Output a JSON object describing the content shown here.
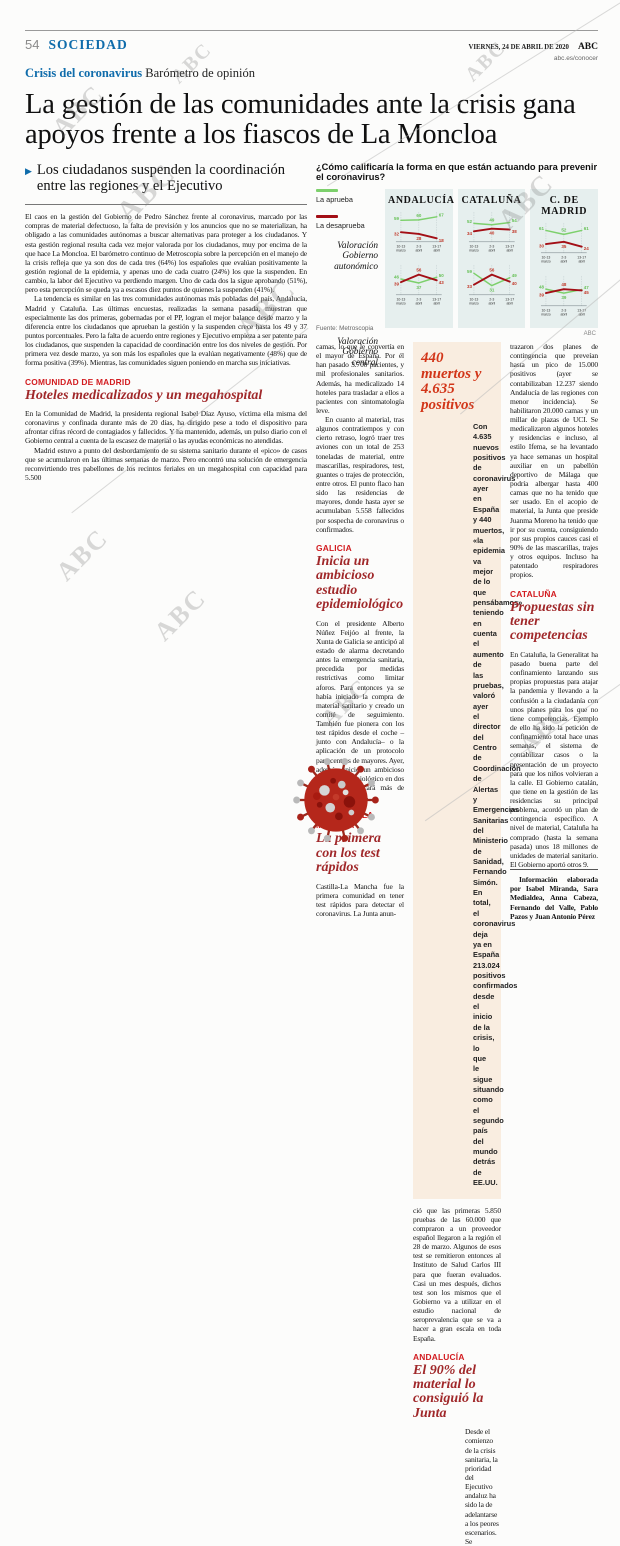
{
  "page": {
    "page_number": "54",
    "section": "SOCIEDAD",
    "kicker_bold": "Crisis del coronavirus",
    "kicker_rest": "Barómetro de opinión",
    "date_line": "VIERNES, 24 DE ABRIL DE 2020",
    "brand": "ABC",
    "site": "abc.es/conocer",
    "headline": "La gestión de las comunidades ante la crisis gana apoyos frente a los fiascos de La Moncloa",
    "watermark": "ABC"
  },
  "standfirst": "Los ciudadanos suspenden la coordinación entre las regiones y el Ejecutivo",
  "chart_data": {
    "type": "line",
    "title": "¿Cómo calificaría la forma en que están actuando para prevenir el coronavirus?",
    "categories": [
      "10-13 marzo",
      "2-3 abril",
      "13-17 abril"
    ],
    "ylim": [
      10,
      78
    ],
    "grid": "dotted-vertical",
    "legend_position": "left",
    "panel_bg": "#e6efee",
    "legend": [
      {
        "key": "aprueba",
        "label": "La aprueba",
        "color": "#7dd06c",
        "text_color": "#67c157"
      },
      {
        "key": "desaprueba",
        "label": "La desaprueba",
        "color": "#a30f16",
        "text_color": "#c23a2b"
      }
    ],
    "row_labels": [
      "Valoración Gobierno autonómico",
      "Valoración Gobierno central"
    ],
    "source": "Fuente: Metroscopia",
    "credit": "ABC",
    "regions": [
      {
        "name": "ANDALUCÍA",
        "rows": [
          {
            "label": "Valoración Gobierno autonómico",
            "aprueba": [
              59,
              60,
              67
            ],
            "desaprueba": [
              32,
              28,
              18
            ]
          },
          {
            "label": "Valoración Gobierno central",
            "aprueba": [
              46,
              37,
              50
            ],
            "desaprueba": [
              39,
              56,
              43
            ]
          }
        ]
      },
      {
        "name": "CATALUÑA",
        "rows": [
          {
            "label": "Valoración Gobierno autonómico",
            "aprueba": [
              52,
              49,
              54
            ],
            "desaprueba": [
              34,
              40,
              38
            ]
          },
          {
            "label": "Valoración Gobierno central",
            "aprueba": [
              59,
              31,
              49
            ],
            "desaprueba": [
              33,
              56,
              40
            ]
          }
        ]
      },
      {
        "name": "C. DE MADRID",
        "rows": [
          {
            "label": "Valoración Gobierno autonómico",
            "aprueba": [
              61,
              52,
              61
            ],
            "desaprueba": [
              30,
              35,
              24
            ]
          },
          {
            "label": "Valoración Gobierno central",
            "aprueba": [
              48,
              39,
              47
            ],
            "desaprueba": [
              39,
              48,
              45
            ]
          }
        ]
      }
    ]
  },
  "articles": {
    "columns": [
      {
        "blocks": [
          {
            "type": "p",
            "text": "El caos en la gestión del Gobierno de Pedro Sánchez frente al coronavirus, marcado por las compras de material defectuoso, la falta de previsión y los anuncios que no se materializan, ha obligado a las comunidades autónomas a buscar alternativas para proteger a los ciudadanos. Y esta gestión regional resulta cada vez mejor valorada por los ciudadanos, muy por encima de la que hace La Moncloa. El barómetro continuo de Metroscopia sobre la percepción en el manejo de la crisis refleja que ya son dos de cada tres (64%) los españoles que evalúan positivamente la gestión regional de la epidemia, y apenas uno de cada cuatro (24%) los que la suspenden. En cambio, la labor del Ejecutivo va perdiendo margen. Uno de cada dos la sigue aprobando (51%), pero esta percepción se queda ya a escasos diez puntos de quienes la suspenden (41%)."
          },
          {
            "type": "p",
            "text": "La tendencia es similar en las tres comunidades autónomas más pobladas del país, Andalucía, Madrid y Cataluña. Las últimas encuestas, realizadas la semana pasada, muestran que especialmente las dos primeras, gobernadas por el PP, logran el mejor balance desde marzo y la diferencia entre los ciudadanos que aprueban la gestión y la suspenden crece hasta los 49 y 37 puntos porcentuales. Pero la falta de acuerdo entre regiones y Ejecutivo empieza a ser patente para los ciudadanos, que suspenden la capacidad de coordinación entre los dos niveles de gestión. Por primera vez desde marzo, ya son más los españoles que la evalúan negativamente (48%) que de forma positiva (39%). Mientras, las comunidades siguen poniendo en marcha sus iniciativas."
          },
          {
            "type": "kicker",
            "text": "COMUNIDAD DE MADRID"
          },
          {
            "type": "subhead",
            "text": "Hoteles medicalizados y un megahospital"
          },
          {
            "type": "p",
            "text": "En la Comunidad de Madrid, la presidenta regional Isabel Díaz Ayuso, víctima ella misma del coronavirus y confinada durante más de 20 días, ha dirigido pese a todo el dispositivo para afrontar cifras récord de contagiados y fallecidos. Y ha mantenido, además, un pulso diario con el Gobierno central a cuenta de la escasez de material o las ayudas económicas no atendidas."
          },
          {
            "type": "p",
            "text": "Madrid estuvo a punto del desbordamiento de su sistema sanitario durante el «pico» de casos que se acumularon en las últimas semanas de marzo. Pero encontró una solución de emergencia reconvirtiendo tres pabellones de los recintos feriales en un megahospital con capacidad para 5.500"
          }
        ]
      },
      {
        "blocks": [
          {
            "type": "p",
            "text": "camas, lo que le convertía en el mayor de España. Por él han pasado 3.700 pacientes, y mil profesionales sanitarios. Además, ha medicalizado 14 hoteles para trasladar a ellos a pacientes con sintomatología leve."
          },
          {
            "type": "p",
            "text": "En cuanto al material, tras algunos contratiempos y con cierto retraso, logró traer tres aviones con un total de 253 toneladas de material, entre mascarillas, respiradores, test, guantes o trajes de protección, entre otros. El punto flaco han sido las residencias de mayores, donde hasta ayer se acumulaban 5.558 fallecidos por sospecha de coronavirus o confirmados."
          },
          {
            "type": "kicker",
            "text": "GALICIA"
          },
          {
            "type": "subhead",
            "text": "Inicia un ambicioso estudio epidemiológico"
          },
          {
            "type": "p",
            "text": "Con el presidente Alberto Núñez Feijóo al frente, la Xunta de Galicia se anticipó al estado de alarma decretando antes la emergencia sanitaria, precedida por medidas restrictivas como limitar aforos. Para entonces ya se había iniciado la compra de material sanitario y creado un comité de seguimiento. También fue pionera con los test rápidos desde el coche –junto con Andalucía– o la aplicación de un protocolo para centros de mayores. Ayer, además, inició un ambicioso estudio epidemiológico en dos fases que abarcará más de 100.000 muestras."
          },
          {
            "type": "kicker",
            "text": "CASTILLA-LA MANCHA"
          },
          {
            "type": "subhead",
            "text": "La primera con los test rápidos"
          },
          {
            "type": "p",
            "text": "Castilla-La Mancha fue la primera comunidad en tener test rápidos para detectar el coronavirus. La Junta anun-"
          }
        ]
      },
      {
        "blocks": [
          {
            "type": "box",
            "title": "440 muertos y 4.635 positivos",
            "body": "Con 4.635 nuevos positivos de coronavirus ayer en España y 440 muertos, «la epidemia va mejor de lo que pensábamos» teniendo en cuenta el aumento de las pruebas, valoró ayer el director del Centro de Coordinación de Alertas y Emergencias Sanitarias del Ministerio de Sanidad, Fernando Simón. En total, el coronavirus deja ya en España 213.024 positivos confirmados desde el inicio de la crisis, lo que le sigue situando como el segundo país del mundo detrás de EE.UU."
          },
          {
            "type": "p",
            "text": "ció que las primeras 5.850 pruebas de las 60.000 que compraron a un proveedor español llegaron a la región el 28 de marzo. Algunos de esos test se remitieron entonces al Instituto de Salud Carlos III para que fueran evaluados. Casi un mes después, dichos test son los mismos que el Gobierno va a utilizar en el estudio nacional de seroprevalencia que se va a hacer a gran escala en toda España."
          },
          {
            "type": "kicker",
            "text": "ANDALUCÍA"
          },
          {
            "type": "subhead",
            "text": "El 90% del material lo consiguió la Junta"
          },
          {
            "type": "p",
            "text": "Desde el comienzo de la crisis sanitaria, la prioridad del Ejecutivo andaluz ha sido la de adelantarse a los peores escenarios. Se"
          }
        ]
      },
      {
        "blocks": [
          {
            "type": "p",
            "text": "trazaron dos planes de contingencia que preveían hasta un pico de 15.000 positivos (ayer se contabilizaban 12.237 siendo Andalucía de las regiones con menor incidencia). Se habilitaron 20.000 camas y un millar de plazas de UCI. Se medicalizaron algunos hoteles y residencias e incluso, al estilo Ifema, se ha levantado ya hace semanas un hospital auxiliar en un pabellón deportivo de Málaga que podría albergar hasta 400 camas que no ha tenido que ser usado. En el acopio de material, la Junta que preside Juanma Moreno ha tenido que ir por su cuenta, consiguiendo por sus propios cauces casi el 90% de las mascarillas, trajes y otros equipos. Incluso ha patentado respiradores propios."
          },
          {
            "type": "kicker",
            "text": "CATALUÑA"
          },
          {
            "type": "subhead",
            "text": "Propuestas sin tener competencias"
          },
          {
            "type": "p",
            "text": "En Cataluña, la Generalitat ha pasado buena parte del confinamiento lanzando sus propias propuestas para atajar la pandemia y llevando a la confusión a la ciudadanía con unos planes para los que no tiene competencias. Ejemplo de ello ha sido la petición de confinamiento total hace unas semanas, el sistema de contabilizar casos o la presentación de un proyecto para que los niños volvieran a la calle. El Gobierno catalán, que tiene en la gestión de las residencias su principal problema, acordó un plan de contingencia específico. A nivel de material, Cataluña ha comprado (hasta la semana pasada) unos 18 millones de unidades de material sanitario. El Gobierno aportó otros 9."
          },
          {
            "type": "byline",
            "text": "Información elaborada por Isabel Miranda, Sara Medialdea, Anna Cabeza, Fernando del Valle, Pablo Pazos y Juan Antonio Pérez"
          }
        ]
      }
    ]
  }
}
